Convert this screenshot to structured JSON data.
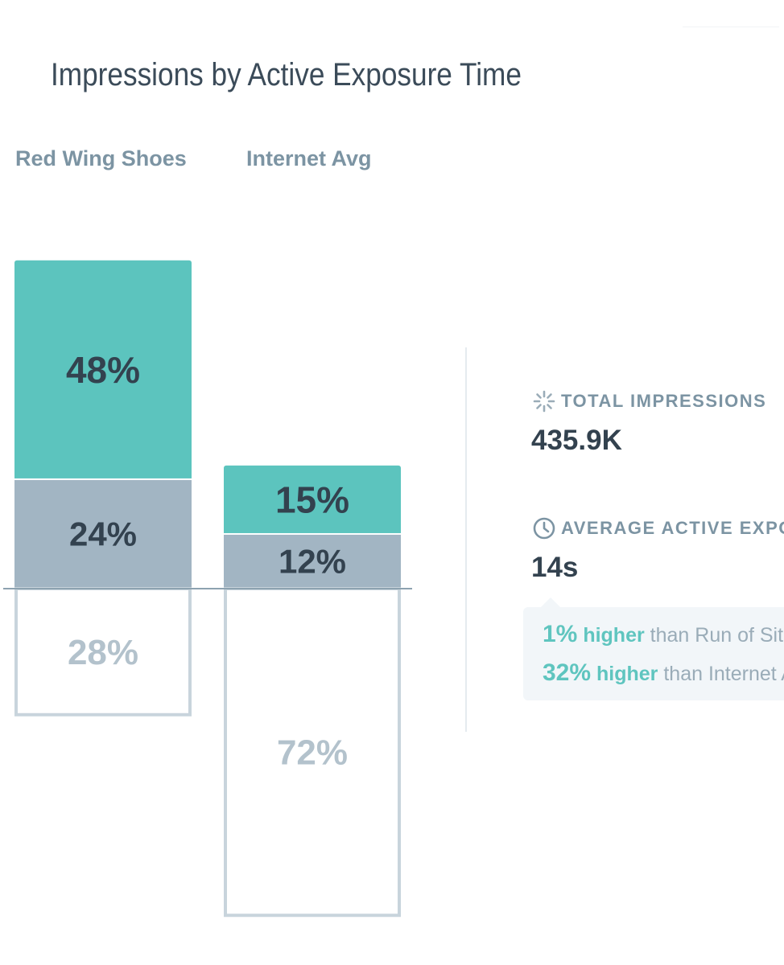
{
  "chart_data": {
    "type": "bar",
    "stacked": true,
    "title": "Impressions by Active Exposure Time",
    "categories": [
      "Red Wing Shoes",
      "Internet Avg"
    ],
    "series": [
      {
        "values": [
          48,
          15
        ],
        "color": "#5cc4be"
      },
      {
        "values": [
          24,
          12
        ],
        "color": "#a2b5c3"
      },
      {
        "values": [
          28,
          72
        ],
        "color": "#ffffff",
        "outline": "#c8d4dc"
      }
    ],
    "value_labels": [
      [
        "48%",
        "24%",
        "28%"
      ],
      [
        "15%",
        "12%",
        "72%"
      ]
    ],
    "baseline_after_series": 2,
    "label_colors": [
      "#33424f",
      "#33424f",
      "#b3c2cc"
    ]
  },
  "stats": {
    "total_impressions": {
      "icon": "loading-spinner-icon",
      "label": "TOTAL IMPRESSIONS",
      "value": "435.9K"
    },
    "average_exposure": {
      "icon": "clock-icon",
      "label": "AVERAGE ACTIVE EXPO",
      "value": "14s"
    }
  },
  "comparisons": [
    {
      "percent": "1%",
      "word": "higher",
      "rest": "than Run of Site"
    },
    {
      "percent": "32%",
      "word": "higher",
      "rest": "than Internet Av"
    }
  ],
  "colors": {
    "accent": "#5fc5bf",
    "title": "#3b4b59",
    "muted": "#7c94a3",
    "value": "#33424f"
  }
}
